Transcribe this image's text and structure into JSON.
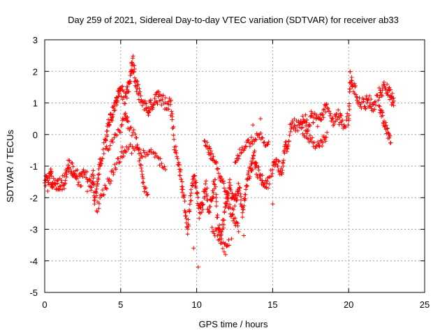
{
  "chart_data": {
    "type": "scatter",
    "title": "Day 259 of 2021, Sidereal Day-to-day VTEC variation (SDTVAR) for receiver ab33",
    "xlabel": "GPS time / hours",
    "ylabel": "SDTVAR / TECUs",
    "xlim": [
      0,
      25
    ],
    "ylim": [
      -5,
      3
    ],
    "xticks": [
      0,
      5,
      10,
      15,
      20,
      25
    ],
    "yticks": [
      -5,
      -4,
      -3,
      -2,
      -1,
      0,
      1,
      2,
      3
    ],
    "grid": true,
    "marker": "+",
    "series": [
      {
        "name": "SDTVAR",
        "color": "#ff0000",
        "trend": [
          [
            0.0,
            -1.4
          ],
          [
            0.2,
            -1.6
          ],
          [
            0.4,
            -1.3
          ],
          [
            0.5,
            -1.5
          ],
          [
            0.8,
            -1.6
          ],
          [
            1.0,
            -1.55
          ],
          [
            1.3,
            -1.5
          ],
          [
            1.5,
            -1.0
          ],
          [
            1.8,
            -1.1
          ],
          [
            2.0,
            -1.15
          ],
          [
            2.3,
            -1.5
          ],
          [
            2.6,
            -1.2
          ],
          [
            3.0,
            -1.6
          ],
          [
            3.2,
            -1.3
          ],
          [
            3.3,
            -2.2
          ],
          [
            3.5,
            -1.4
          ],
          [
            3.7,
            -0.8
          ],
          [
            4.0,
            -0.2
          ],
          [
            4.2,
            0.3
          ],
          [
            4.4,
            0.6
          ],
          [
            4.6,
            0.9
          ],
          [
            4.8,
            1.2
          ],
          [
            5.0,
            1.4
          ],
          [
            5.3,
            1.1
          ],
          [
            5.5,
            1.5
          ],
          [
            5.7,
            2.0
          ],
          [
            5.8,
            2.3
          ],
          [
            6.0,
            1.6
          ],
          [
            6.2,
            1.3
          ],
          [
            6.5,
            1.0
          ],
          [
            6.8,
            0.8
          ],
          [
            7.0,
            0.9
          ],
          [
            7.3,
            1.2
          ],
          [
            7.6,
            1.1
          ],
          [
            8.0,
            1.0
          ],
          [
            8.3,
            0.9
          ],
          [
            8.5,
            -0.2
          ],
          [
            8.8,
            -0.8
          ],
          [
            9.0,
            -1.5
          ],
          [
            9.2,
            -2.2
          ],
          [
            9.4,
            -3.2
          ],
          [
            9.6,
            -2.0
          ],
          [
            9.8,
            -1.3
          ],
          [
            10.0,
            -1.8
          ],
          [
            10.2,
            -2.5
          ],
          [
            10.4,
            -2.2
          ],
          [
            10.6,
            -1.6
          ],
          [
            10.8,
            -2.4
          ],
          [
            11.0,
            -2.0
          ],
          [
            11.2,
            -1.5
          ],
          [
            11.4,
            -2.8
          ],
          [
            11.6,
            -3.3
          ],
          [
            11.8,
            -2.6
          ],
          [
            12.0,
            -2.0
          ],
          [
            12.2,
            -1.6
          ],
          [
            12.4,
            -2.2
          ],
          [
            12.6,
            -2.0
          ],
          [
            12.8,
            -1.7
          ],
          [
            13.0,
            -2.4
          ],
          [
            13.2,
            -1.9
          ],
          [
            13.4,
            -1.3
          ],
          [
            13.6,
            -1.0
          ],
          [
            13.8,
            -0.7
          ],
          [
            14.0,
            -1.2
          ],
          [
            14.3,
            -1.4
          ],
          [
            14.6,
            -1.7
          ],
          [
            15.0,
            -1.0
          ],
          [
            15.3,
            -0.8
          ],
          [
            15.6,
            -1.3
          ],
          [
            15.8,
            -0.5
          ],
          [
            16.0,
            -0.2
          ],
          [
            16.3,
            0.4
          ],
          [
            16.6,
            0.2
          ],
          [
            17.0,
            0.5
          ],
          [
            17.3,
            0.3
          ],
          [
            17.6,
            0.6
          ],
          [
            18.0,
            0.4
          ],
          [
            18.3,
            0.7
          ],
          [
            18.6,
            0.8
          ],
          [
            19.0,
            0.5
          ],
          [
            19.3,
            0.6
          ],
          [
            19.6,
            0.3
          ],
          [
            20.0,
            0.5
          ],
          [
            20.1,
            1.8
          ],
          [
            20.3,
            1.5
          ],
          [
            20.6,
            1.2
          ],
          [
            21.0,
            0.9
          ],
          [
            21.3,
            1.1
          ],
          [
            21.6,
            0.9
          ],
          [
            22.0,
            1.3
          ],
          [
            22.3,
            1.5
          ],
          [
            22.6,
            1.4
          ],
          [
            22.8,
            1.2
          ],
          [
            23.0,
            1.0
          ]
        ],
        "branches": [
          [
            [
              3.4,
              -2.4
            ],
            [
              3.8,
              -1.9
            ],
            [
              4.2,
              -1.5
            ],
            [
              4.6,
              -1.1
            ],
            [
              5.0,
              -0.7
            ],
            [
              5.4,
              -0.5
            ],
            [
              6.0,
              -0.4
            ],
            [
              6.5,
              -0.6
            ],
            [
              7.0,
              -0.5
            ],
            [
              7.5,
              -0.8
            ],
            [
              8.0,
              -1.0
            ]
          ],
          [
            [
              4.0,
              -0.5
            ],
            [
              4.5,
              -0.2
            ],
            [
              5.0,
              0.2
            ],
            [
              5.3,
              0.6
            ],
            [
              5.5,
              0.3
            ],
            [
              6.0,
              -0.1
            ],
            [
              6.3,
              -1.0
            ],
            [
              6.5,
              -1.6
            ],
            [
              6.8,
              -2.0
            ]
          ],
          [
            [
              10.5,
              -0.2
            ],
            [
              10.8,
              -0.5
            ],
            [
              11.0,
              -0.7
            ],
            [
              11.3,
              -1.0
            ],
            [
              11.6,
              -1.4
            ],
            [
              11.9,
              -1.8
            ],
            [
              12.2,
              -2.4
            ],
            [
              12.5,
              -2.7
            ],
            [
              12.8,
              -3.0
            ]
          ],
          [
            [
              11.0,
              -3.0
            ],
            [
              11.4,
              -3.2
            ],
            [
              11.8,
              -3.6
            ],
            [
              12.2,
              -3.4
            ]
          ],
          [
            [
              12.5,
              -1.0
            ],
            [
              12.8,
              -0.6
            ],
            [
              13.2,
              -0.3
            ],
            [
              13.6,
              -0.2
            ],
            [
              14.0,
              0.0
            ],
            [
              14.4,
              -0.2
            ],
            [
              14.8,
              -0.4
            ]
          ],
          [
            [
              16.8,
              0.3
            ],
            [
              17.2,
              0.0
            ],
            [
              17.6,
              -0.2
            ],
            [
              18.0,
              -0.4
            ],
            [
              18.3,
              -0.2
            ],
            [
              18.6,
              0.0
            ]
          ],
          [
            [
              22.0,
              0.9
            ],
            [
              22.2,
              0.6
            ],
            [
              22.4,
              0.3
            ],
            [
              22.6,
              0.0
            ],
            [
              22.8,
              -0.3
            ]
          ]
        ],
        "outliers": [
          [
            9.8,
            -3.6
          ],
          [
            10.1,
            -4.2
          ],
          [
            11.9,
            -3.8
          ],
          [
            12.3,
            -3.3
          ],
          [
            13.1,
            -3.2
          ],
          [
            13.7,
            0.3
          ],
          [
            14.2,
            0.5
          ],
          [
            15.0,
            -2.2
          ],
          [
            5.1,
            -0.4
          ],
          [
            2.8,
            -1.8
          ]
        ]
      }
    ]
  }
}
